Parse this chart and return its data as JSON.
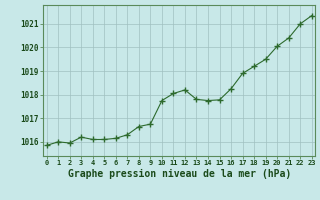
{
  "x": [
    0,
    1,
    2,
    3,
    4,
    5,
    6,
    7,
    8,
    9,
    10,
    11,
    12,
    13,
    14,
    15,
    16,
    17,
    18,
    19,
    20,
    21,
    22,
    23
  ],
  "y": [
    1015.85,
    1016.0,
    1015.95,
    1016.2,
    1016.1,
    1016.1,
    1016.15,
    1016.3,
    1016.65,
    1016.75,
    1017.75,
    1018.05,
    1018.2,
    1017.8,
    1017.75,
    1017.78,
    1018.25,
    1018.9,
    1019.2,
    1019.5,
    1020.05,
    1020.4,
    1021.0,
    1021.35
  ],
  "line_color": "#2d6a2d",
  "marker_color": "#2d6a2d",
  "bg_color": "#c8e8e8",
  "grid_color": "#a0c0c0",
  "title": "Graphe pression niveau de la mer (hPa)",
  "title_color": "#1a4a1a",
  "title_fontsize": 7.0,
  "tick_color": "#1a4a1a",
  "ylabel_ticks": [
    1016,
    1017,
    1018,
    1019,
    1020,
    1021
  ],
  "xtick_labels": [
    "0",
    "1",
    "2",
    "3",
    "4",
    "5",
    "6",
    "7",
    "8",
    "9",
    "10",
    "11",
    "12",
    "13",
    "14",
    "15",
    "16",
    "17",
    "18",
    "19",
    "20",
    "21",
    "22",
    "23"
  ],
  "ylim": [
    1015.4,
    1021.8
  ],
  "xlim": [
    -0.3,
    23.3
  ]
}
